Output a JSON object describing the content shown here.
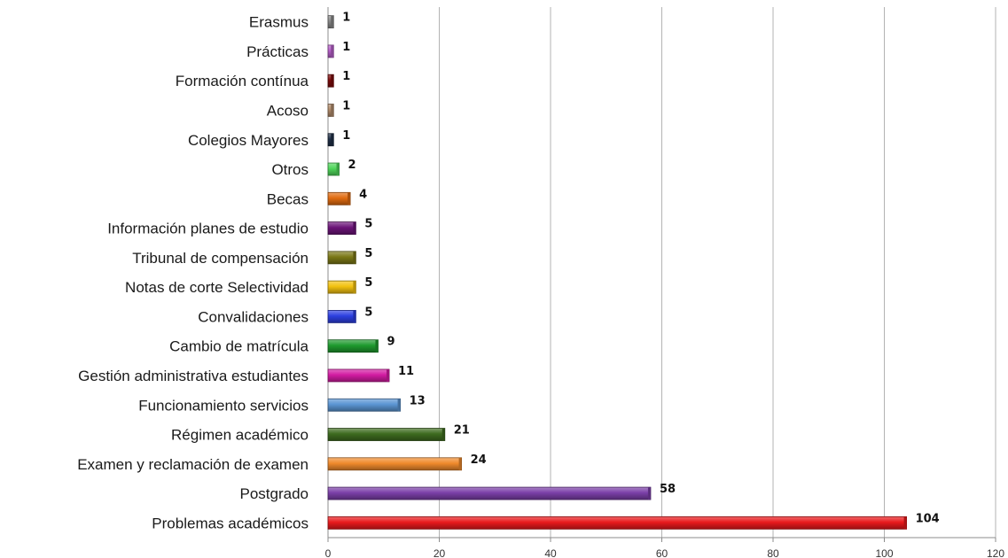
{
  "chart_data": {
    "type": "bar",
    "orientation": "horizontal",
    "categories": [
      "Problemas académicos",
      "Postgrado",
      "Examen y reclamación de examen",
      "Régimen académico",
      "Funcionamiento servicios",
      "Gestión administrativa estudiantes",
      "Cambio de matrícula",
      "Convalidaciones",
      "Notas de corte Selectividad",
      "Tribunal de compensación",
      "Información planes de estudio",
      "Becas",
      "Otros",
      "Colegios Mayores",
      "Acoso",
      "Formación contínua",
      "Prácticas",
      "Erasmus"
    ],
    "values": [
      104,
      58,
      24,
      21,
      13,
      11,
      9,
      5,
      5,
      5,
      5,
      4,
      2,
      1,
      1,
      1,
      1,
      1
    ],
    "colors": [
      "#e8191c",
      "#7b3fa8",
      "#f08a2c",
      "#3d6b1f",
      "#5b95d3",
      "#d21ba2",
      "#1e9a2e",
      "#2c3fe0",
      "#f2c10f",
      "#7a7716",
      "#6b1478",
      "#e06b10",
      "#4fd65a",
      "#1f2e45",
      "#b08a6a",
      "#7a0a0a",
      "#b55fc8",
      "#888888"
    ],
    "title": "",
    "xlabel": "",
    "ylabel": "",
    "xlim": [
      0,
      120
    ],
    "xticks": [
      0,
      20,
      40,
      60,
      80,
      100,
      120
    ],
    "grid": true,
    "legend": "none",
    "data_labels": true
  }
}
